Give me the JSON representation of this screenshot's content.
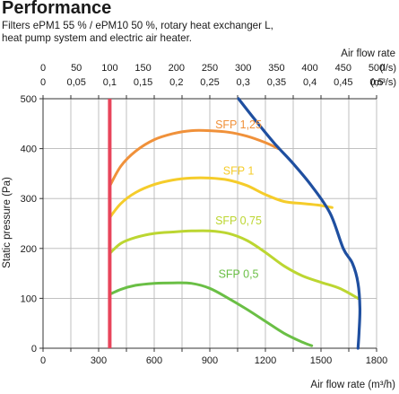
{
  "header": {
    "title": "Performance",
    "subtitle_line1": "Filters ePM1 55 % / ePM10 50 %, rotary heat exchanger L,",
    "subtitle_line2": "heat pump system and electric air heater."
  },
  "chart_data": {
    "type": "line",
    "title": "Performance",
    "xlabel": "Air flow rate (m³/h)",
    "ylabel": "Static pressure (Pa)",
    "x2label": "Air flow rate",
    "x2_units_ls": "(l/s)",
    "x2_units_m3s": "(m³/s)",
    "xlim": [
      0,
      1800
    ],
    "ylim": [
      0,
      500
    ],
    "x_ticks": [
      "0",
      "300",
      "600",
      "900",
      "1200",
      "1500",
      "1800"
    ],
    "y_ticks": [
      "0",
      "100",
      "200",
      "300",
      "400",
      "500"
    ],
    "x2_ticks_ls": [
      "0",
      "50",
      "100",
      "150",
      "200",
      "250",
      "300",
      "350",
      "400",
      "450",
      "500"
    ],
    "x2_ticks_m3s": [
      "0",
      "0,05",
      "0,1",
      "0,15",
      "0,2",
      "0,25",
      "0,3",
      "0,35",
      "0,4",
      "0,45",
      "0,5"
    ],
    "grid": true,
    "colors": {
      "grid": "#b8b8b8",
      "limit_line": "#e8455b",
      "max_curve": "#1f4fa0",
      "sfp_125": "#f0913a",
      "sfp_1": "#f5cc2a",
      "sfp_075": "#bcd631",
      "sfp_05": "#6abf45"
    },
    "series": [
      {
        "name": "SFP 1,25",
        "color_key": "sfp_125",
        "label_at": [
          1055,
          448
        ],
        "x": [
          360,
          420,
          500,
          600,
          700,
          800,
          900,
          1000,
          1100,
          1200,
          1270
        ],
        "y": [
          325,
          365,
          395,
          418,
          430,
          436,
          436,
          433,
          425,
          412,
          400
        ]
      },
      {
        "name": "SFP 1",
        "color_key": "sfp_1",
        "label_at": [
          1055,
          355
        ],
        "x": [
          360,
          420,
          500,
          600,
          700,
          800,
          900,
          1000,
          1100,
          1200,
          1300,
          1400,
          1480,
          1560
        ],
        "y": [
          262,
          290,
          312,
          328,
          337,
          341,
          341,
          337,
          326,
          308,
          294,
          290,
          287,
          282
        ]
      },
      {
        "name": "SFP 0,75",
        "color_key": "sfp_075",
        "label_at": [
          1055,
          255
        ],
        "x": [
          360,
          420,
          500,
          600,
          700,
          800,
          900,
          1000,
          1100,
          1200,
          1300,
          1400,
          1500,
          1600,
          1700
        ],
        "y": [
          190,
          210,
          222,
          230,
          233,
          235,
          235,
          230,
          216,
          192,
          165,
          145,
          132,
          120,
          100
        ]
      },
      {
        "name": "SFP 0,5",
        "color_key": "sfp_05",
        "label_at": [
          1055,
          148
        ],
        "x": [
          360,
          420,
          500,
          600,
          700,
          800,
          900,
          1000,
          1100,
          1200,
          1300,
          1400,
          1450
        ],
        "y": [
          108,
          118,
          126,
          130,
          131,
          130,
          120,
          100,
          78,
          54,
          30,
          12,
          5
        ]
      },
      {
        "name": "",
        "color_key": "max_curve",
        "x": [
          1055,
          1150,
          1250,
          1350,
          1450,
          1550,
          1620,
          1670,
          1700,
          1710,
          1705,
          1700
        ],
        "y": [
          500,
          455,
          410,
          370,
          325,
          270,
          200,
          170,
          130,
          80,
          30,
          0
        ]
      }
    ],
    "vline": {
      "x": 360,
      "color_key": "limit_line"
    }
  }
}
